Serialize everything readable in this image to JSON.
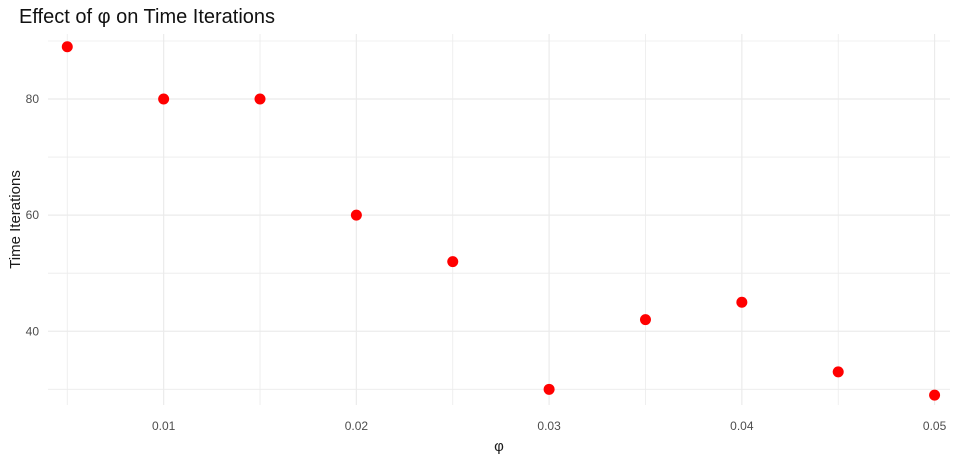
{
  "chart_data": {
    "type": "scatter",
    "title": "Effect of φ on Time Iterations",
    "xlabel": "φ",
    "ylabel": "Time Iterations",
    "x": [
      0.005,
      0.01,
      0.015,
      0.02,
      0.025,
      0.03,
      0.035,
      0.04,
      0.045,
      0.05
    ],
    "y": [
      89,
      80,
      80,
      60,
      52,
      30,
      42,
      45,
      33,
      29
    ],
    "xlim": [
      0.004,
      0.0508
    ],
    "ylim": [
      27.3,
      91.2
    ],
    "x_major_ticks": [
      0.01,
      0.02,
      0.03,
      0.04,
      0.05
    ],
    "x_minor_ticks": [
      0.005,
      0.015,
      0.025,
      0.035,
      0.045
    ],
    "x_tick_labels": [
      "0.01",
      "0.02",
      "0.03",
      "0.04",
      "0.05"
    ],
    "y_major_ticks": [
      40,
      60,
      80
    ],
    "y_minor_ticks": [
      30,
      50,
      70,
      90
    ],
    "y_tick_labels": [
      "40",
      "60",
      "80"
    ],
    "grid": true,
    "legend": "none",
    "point_color": "#ff0000",
    "grid_color": "#ebebeb",
    "tick_label_color": "#4d4d4d",
    "axis_title_color": "#1a1a1a"
  }
}
